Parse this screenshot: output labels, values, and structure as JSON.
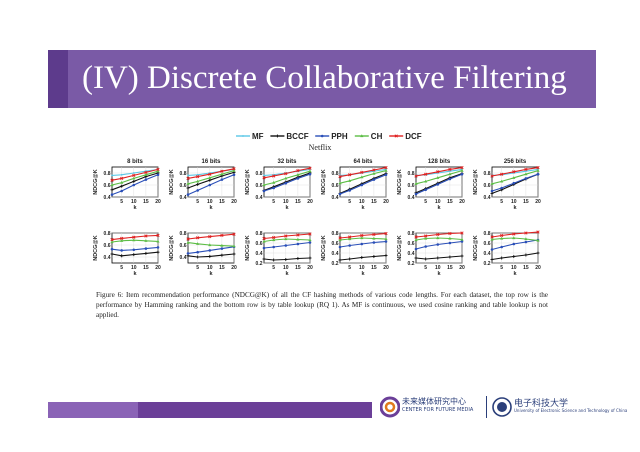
{
  "slide": {
    "title": "(IV) Discrete Collaborative Filtering",
    "caption": "Figure 6: Item recommendation performance (NDCG@K) of all the CF hashing methods of various code lengths. For each dataset, the top row is the performance by Hamming ranking and the bottom row is by table lookup (RQ 1). As MF is continuous, we used cosine ranking and table lookup is not applied.",
    "logos": {
      "left_main": "未来媒体研究中心",
      "left_sub": "CENTER FOR FUTURE MEDIA",
      "right_main": "电子科技大学",
      "right_sub": "University of Electronic Science and Technology of China"
    }
  },
  "colors": {
    "title_bar": "#7a5aa6",
    "footer_bar": "#6b3f98",
    "MF": "#5bc8e6",
    "BCCF": "#111111",
    "PPH": "#2a4fb8",
    "CH": "#5cbd45",
    "DCF": "#e02020"
  },
  "chart_data": {
    "type": "line",
    "dataset": "Netflix",
    "legend": [
      "MF",
      "BCCF",
      "PPH",
      "CH",
      "DCF"
    ],
    "xlabel": "k",
    "ylabel": "NDCG@K",
    "x": [
      1,
      5,
      10,
      15,
      20
    ],
    "xticks": [
      5,
      10,
      15,
      20
    ],
    "panels": [
      {
        "title": "8 bits",
        "row": "Hamming ranking",
        "ylim": [
          0.4,
          0.9
        ],
        "yticks": [
          0.4,
          0.6,
          0.8
        ],
        "series": [
          {
            "name": "MF",
            "values": [
              0.76,
              0.77,
              0.8,
              0.83,
              0.86
            ]
          },
          {
            "name": "BCCF",
            "values": [
              0.52,
              0.58,
              0.66,
              0.74,
              0.8
            ]
          },
          {
            "name": "PPH",
            "values": [
              0.44,
              0.5,
              0.6,
              0.69,
              0.77
            ]
          },
          {
            "name": "CH",
            "values": [
              0.6,
              0.64,
              0.71,
              0.77,
              0.83
            ]
          },
          {
            "name": "DCF",
            "values": [
              0.68,
              0.71,
              0.76,
              0.81,
              0.86
            ]
          }
        ]
      },
      {
        "title": "16 bits",
        "row": "Hamming ranking",
        "ylim": [
          0.4,
          0.9
        ],
        "yticks": [
          0.4,
          0.6,
          0.8
        ],
        "series": [
          {
            "name": "MF",
            "values": [
              0.76,
              0.77,
              0.8,
              0.83,
              0.86
            ]
          },
          {
            "name": "BCCF",
            "values": [
              0.55,
              0.61,
              0.68,
              0.75,
              0.81
            ]
          },
          {
            "name": "PPH",
            "values": [
              0.44,
              0.51,
              0.6,
              0.69,
              0.77
            ]
          },
          {
            "name": "CH",
            "values": [
              0.62,
              0.66,
              0.72,
              0.78,
              0.84
            ]
          },
          {
            "name": "DCF",
            "values": [
              0.71,
              0.74,
              0.78,
              0.83,
              0.87
            ]
          }
        ]
      },
      {
        "title": "32 bits",
        "row": "Hamming ranking",
        "ylim": [
          0.4,
          0.9
        ],
        "yticks": [
          0.4,
          0.6,
          0.8
        ],
        "series": [
          {
            "name": "MF",
            "values": [
              0.76,
              0.77,
              0.8,
              0.83,
              0.86
            ]
          },
          {
            "name": "BCCF",
            "values": [
              0.51,
              0.57,
              0.65,
              0.73,
              0.8
            ]
          },
          {
            "name": "PPH",
            "values": [
              0.5,
              0.55,
              0.63,
              0.71,
              0.78
            ]
          },
          {
            "name": "CH",
            "values": [
              0.6,
              0.64,
              0.71,
              0.77,
              0.83
            ]
          },
          {
            "name": "DCF",
            "values": [
              0.72,
              0.75,
              0.79,
              0.84,
              0.88
            ]
          }
        ]
      },
      {
        "title": "64 bits",
        "row": "Hamming ranking",
        "ylim": [
          0.4,
          0.9
        ],
        "yticks": [
          0.4,
          0.6,
          0.8
        ],
        "series": [
          {
            "name": "MF",
            "values": [
              0.76,
              0.77,
              0.8,
              0.83,
              0.86
            ]
          },
          {
            "name": "BCCF",
            "values": [
              0.46,
              0.53,
              0.62,
              0.71,
              0.79
            ]
          },
          {
            "name": "PPH",
            "values": [
              0.45,
              0.51,
              0.6,
              0.69,
              0.77
            ]
          },
          {
            "name": "CH",
            "values": [
              0.63,
              0.67,
              0.73,
              0.79,
              0.84
            ]
          },
          {
            "name": "DCF",
            "values": [
              0.74,
              0.77,
              0.81,
              0.85,
              0.89
            ]
          }
        ]
      },
      {
        "title": "128 bits",
        "row": "Hamming ranking",
        "ylim": [
          0.4,
          0.9
        ],
        "yticks": [
          0.4,
          0.6,
          0.8
        ],
        "series": [
          {
            "name": "MF",
            "values": [
              0.76,
              0.77,
              0.8,
              0.83,
              0.86
            ]
          },
          {
            "name": "BCCF",
            "values": [
              0.47,
              0.54,
              0.63,
              0.72,
              0.79
            ]
          },
          {
            "name": "PPH",
            "values": [
              0.45,
              0.52,
              0.61,
              0.7,
              0.78
            ]
          },
          {
            "name": "CH",
            "values": [
              0.62,
              0.66,
              0.72,
              0.78,
              0.84
            ]
          },
          {
            "name": "DCF",
            "values": [
              0.75,
              0.78,
              0.82,
              0.86,
              0.89
            ]
          }
        ]
      },
      {
        "title": "256 bits",
        "row": "Hamming ranking",
        "ylim": [
          0.4,
          0.9
        ],
        "yticks": [
          0.4,
          0.6,
          0.8
        ],
        "series": [
          {
            "name": "MF",
            "values": [
              0.76,
              0.77,
              0.8,
              0.83,
              0.86
            ]
          },
          {
            "name": "BCCF",
            "values": [
              0.46,
              0.52,
              0.61,
              0.7,
              0.78
            ]
          },
          {
            "name": "PPH",
            "values": [
              0.5,
              0.55,
              0.63,
              0.71,
              0.78
            ]
          },
          {
            "name": "CH",
            "values": [
              0.62,
              0.66,
              0.72,
              0.78,
              0.84
            ]
          },
          {
            "name": "DCF",
            "values": [
              0.75,
              0.78,
              0.82,
              0.86,
              0.89
            ]
          }
        ]
      },
      {
        "title": "",
        "row": "table lookup",
        "ylim": [
          0.3,
          0.8
        ],
        "yticks": [
          0.4,
          0.6,
          0.8
        ],
        "series": [
          {
            "name": "BCCF",
            "values": [
              0.45,
              0.42,
              0.44,
              0.46,
              0.48
            ]
          },
          {
            "name": "PPH",
            "values": [
              0.53,
              0.51,
              0.52,
              0.54,
              0.56
            ]
          },
          {
            "name": "CH",
            "values": [
              0.65,
              0.67,
              0.68,
              0.67,
              0.66
            ]
          },
          {
            "name": "DCF",
            "values": [
              0.69,
              0.71,
              0.73,
              0.75,
              0.76
            ]
          }
        ]
      },
      {
        "title": "",
        "row": "table lookup",
        "ylim": [
          0.3,
          0.8
        ],
        "yticks": [
          0.4,
          0.6,
          0.8
        ],
        "series": [
          {
            "name": "BCCF",
            "values": [
              0.42,
              0.4,
              0.41,
              0.43,
              0.45
            ]
          },
          {
            "name": "PPH",
            "values": [
              0.46,
              0.48,
              0.51,
              0.54,
              0.57
            ]
          },
          {
            "name": "CH",
            "values": [
              0.64,
              0.62,
              0.6,
              0.59,
              0.58
            ]
          },
          {
            "name": "DCF",
            "values": [
              0.7,
              0.72,
              0.74,
              0.76,
              0.78
            ]
          }
        ]
      },
      {
        "title": "",
        "row": "table lookup",
        "ylim": [
          0.2,
          0.8
        ],
        "yticks": [
          0.2,
          0.4,
          0.6,
          0.8
        ],
        "series": [
          {
            "name": "BCCF",
            "values": [
              0.28,
              0.26,
              0.27,
              0.29,
              0.3
            ]
          },
          {
            "name": "PPH",
            "values": [
              0.5,
              0.52,
              0.55,
              0.58,
              0.61
            ]
          },
          {
            "name": "CH",
            "values": [
              0.63,
              0.66,
              0.68,
              0.67,
              0.66
            ]
          },
          {
            "name": "DCF",
            "values": [
              0.69,
              0.71,
              0.74,
              0.76,
              0.78
            ]
          }
        ]
      },
      {
        "title": "",
        "row": "table lookup",
        "ylim": [
          0.2,
          0.8
        ],
        "yticks": [
          0.2,
          0.4,
          0.6,
          0.8
        ],
        "series": [
          {
            "name": "BCCF",
            "values": [
              0.26,
              0.28,
              0.31,
              0.33,
              0.35
            ]
          },
          {
            "name": "PPH",
            "values": [
              0.52,
              0.55,
              0.58,
              0.61,
              0.63
            ]
          },
          {
            "name": "CH",
            "values": [
              0.66,
              0.68,
              0.7,
              0.69,
              0.68
            ]
          },
          {
            "name": "DCF",
            "values": [
              0.7,
              0.72,
              0.75,
              0.77,
              0.79
            ]
          }
        ]
      },
      {
        "title": "",
        "row": "table lookup",
        "ylim": [
          0.2,
          0.8
        ],
        "yticks": [
          0.2,
          0.4,
          0.6,
          0.8
        ],
        "series": [
          {
            "name": "BCCF",
            "values": [
              0.3,
              0.28,
              0.3,
              0.32,
              0.34
            ]
          },
          {
            "name": "PPH",
            "values": [
              0.48,
              0.53,
              0.57,
              0.6,
              0.63
            ]
          },
          {
            "name": "CH",
            "values": [
              0.66,
              0.69,
              0.7,
              0.69,
              0.67
            ]
          },
          {
            "name": "DCF",
            "values": [
              0.72,
              0.74,
              0.77,
              0.79,
              0.8
            ]
          }
        ]
      },
      {
        "title": "",
        "row": "table lookup",
        "ylim": [
          0.2,
          0.8
        ],
        "yticks": [
          0.2,
          0.4,
          0.6,
          0.8
        ],
        "series": [
          {
            "name": "BCCF",
            "values": [
              0.27,
              0.3,
              0.33,
              0.36,
              0.4
            ]
          },
          {
            "name": "PPH",
            "values": [
              0.47,
              0.52,
              0.58,
              0.62,
              0.66
            ]
          },
          {
            "name": "CH",
            "values": [
              0.67,
              0.69,
              0.7,
              0.68,
              0.65
            ]
          },
          {
            "name": "DCF",
            "values": [
              0.72,
              0.75,
              0.78,
              0.8,
              0.82
            ]
          }
        ]
      }
    ]
  }
}
